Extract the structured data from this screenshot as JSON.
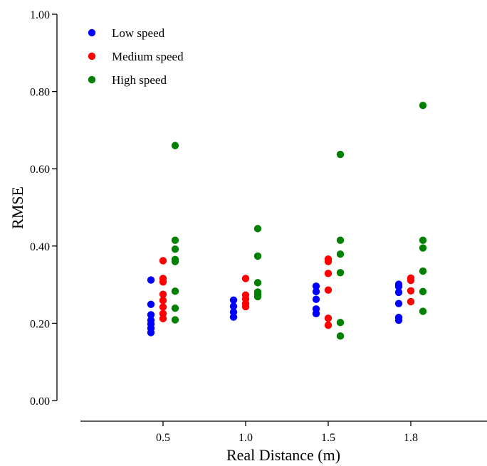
{
  "chart_data": {
    "type": "scatter",
    "title": "",
    "xlabel": "Real Distance (m)",
    "ylabel": "RMSE",
    "ylim": [
      0.0,
      1.0
    ],
    "yticks": [
      "0.00",
      "0.20",
      "0.40",
      "0.60",
      "0.80",
      "1.00"
    ],
    "categories": [
      "0.5",
      "1.0",
      "1.5",
      "1.8"
    ],
    "legend_position": "top-left",
    "grid": false,
    "series": [
      {
        "name": "Low speed",
        "color": "#0000ff",
        "values": [
          [
            0.312,
            0.249,
            0.222,
            0.208,
            0.198,
            0.187,
            0.176
          ],
          [
            0.26,
            0.244,
            0.229,
            0.216
          ],
          [
            0.296,
            0.282,
            0.262,
            0.237,
            0.225
          ],
          [
            0.301,
            0.295,
            0.28,
            0.251,
            0.215,
            0.208
          ]
        ]
      },
      {
        "name": "Medium speed",
        "color": "#ff0000",
        "values": [
          [
            0.362,
            0.316,
            0.307,
            0.275,
            0.259,
            0.242,
            0.225,
            0.212
          ],
          [
            0.316,
            0.273,
            0.263,
            0.251,
            0.243
          ],
          [
            0.366,
            0.36,
            0.329,
            0.286,
            0.213,
            0.195
          ],
          [
            0.317,
            0.311,
            0.284,
            0.256
          ]
        ]
      },
      {
        "name": "High speed",
        "color": "#008000",
        "values": [
          [
            0.66,
            0.415,
            0.392,
            0.365,
            0.36,
            0.283,
            0.239,
            0.209
          ],
          [
            0.445,
            0.374,
            0.305,
            0.281,
            0.275,
            0.269
          ],
          [
            0.637,
            0.415,
            0.379,
            0.331,
            0.202,
            0.167
          ],
          [
            0.764,
            0.415,
            0.395,
            0.335,
            0.282,
            0.231
          ]
        ]
      }
    ]
  }
}
